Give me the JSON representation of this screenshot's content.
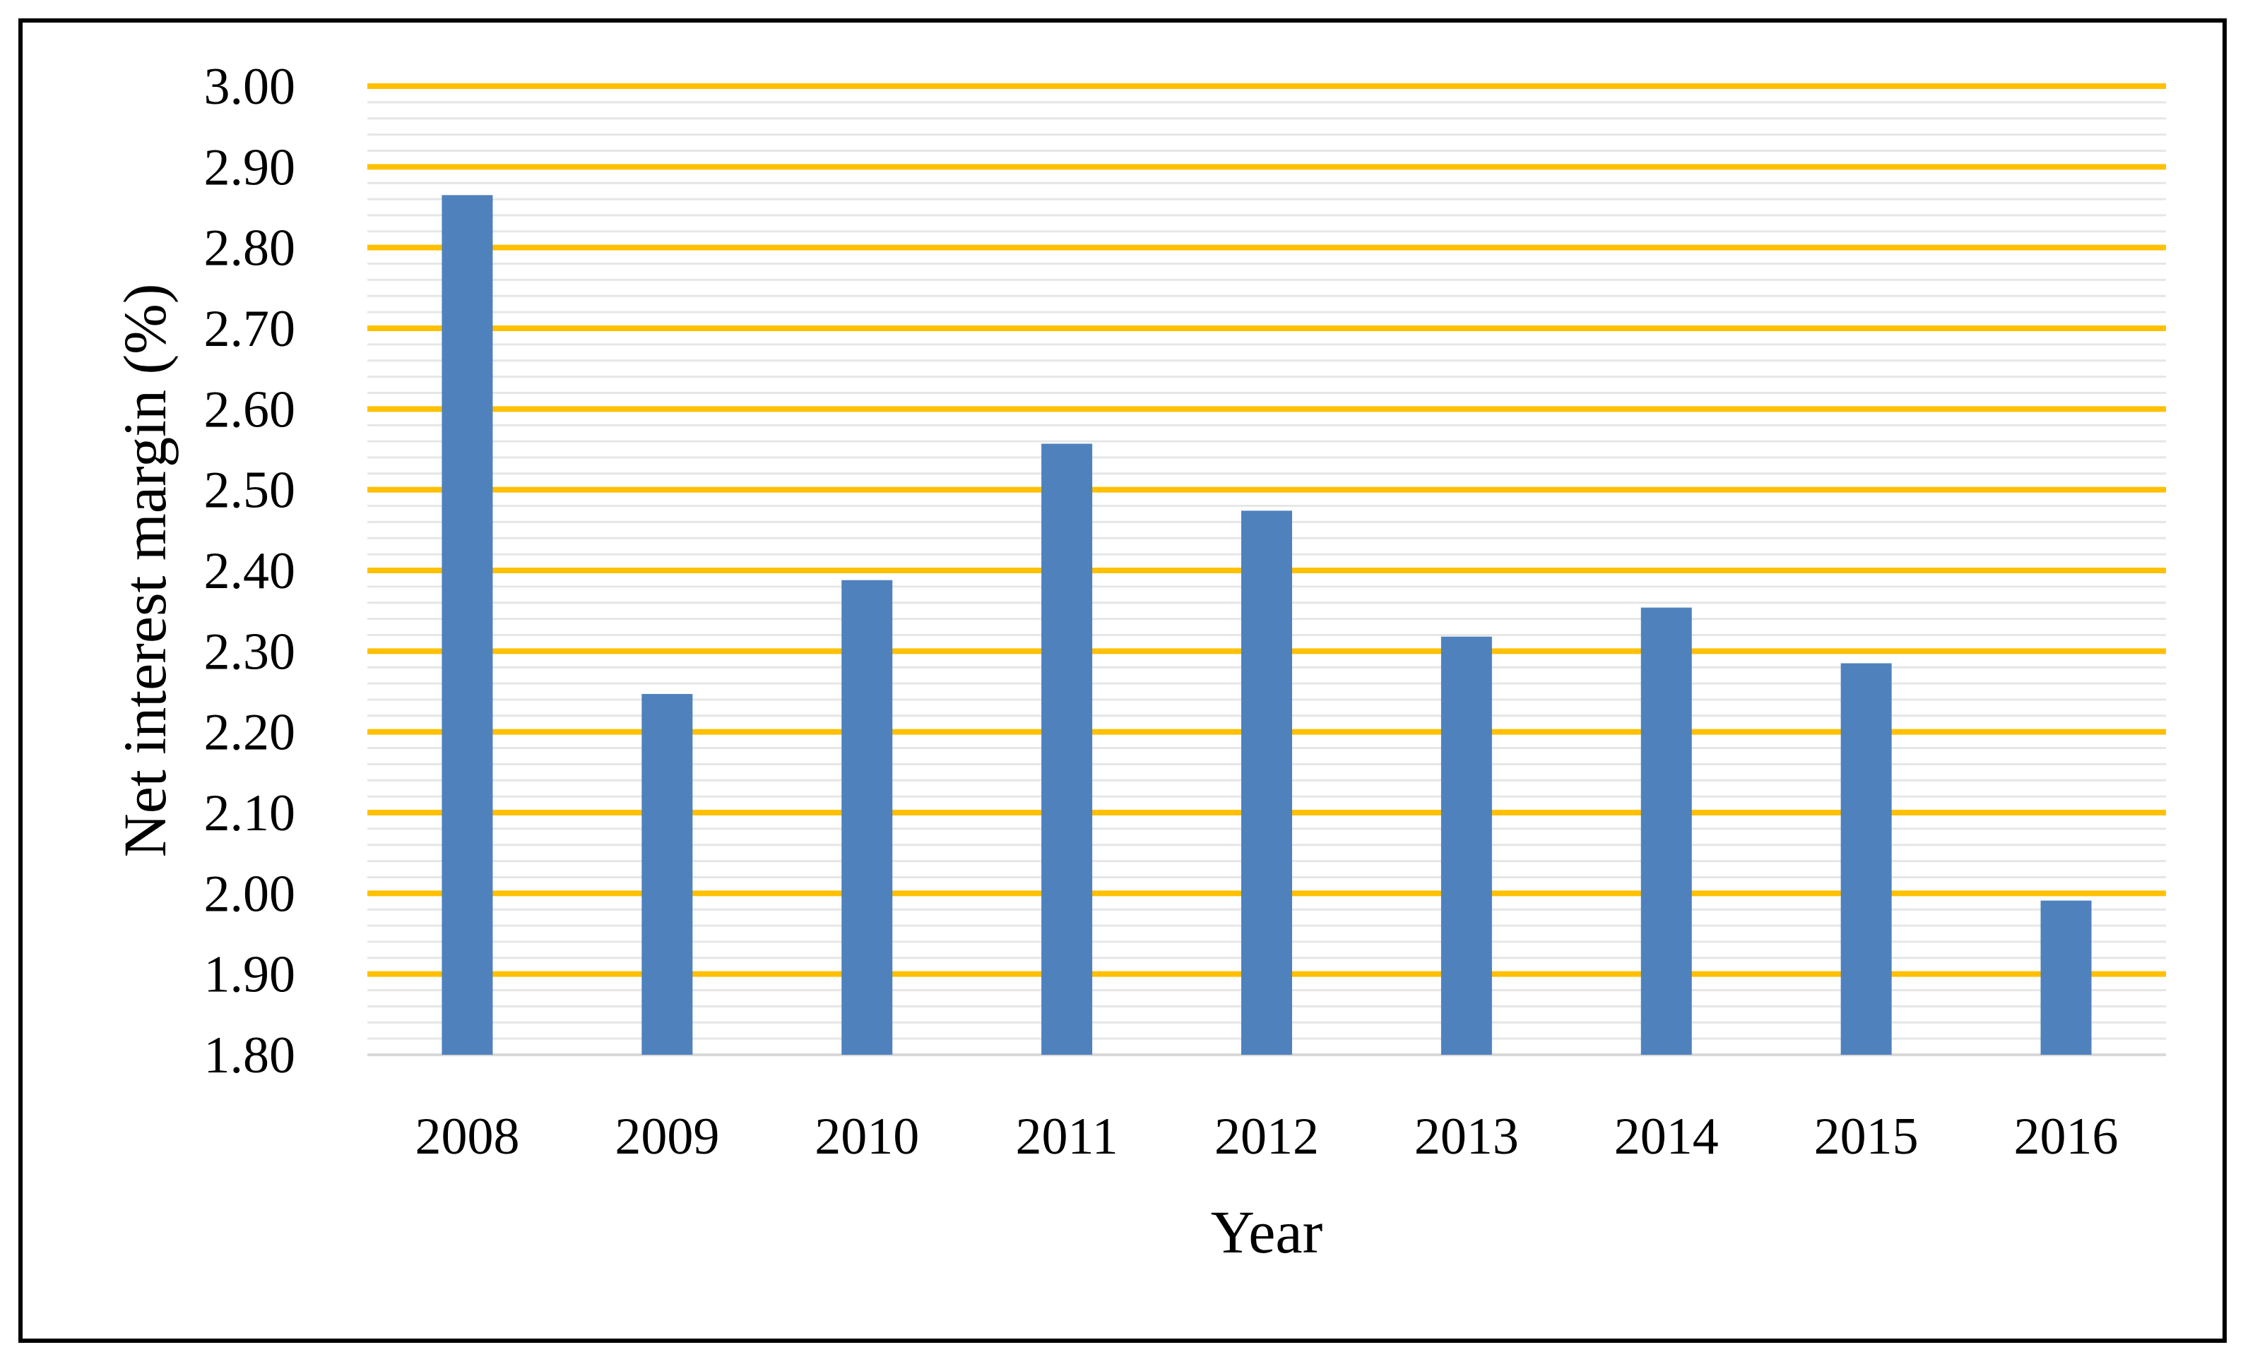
{
  "chart_data": {
    "type": "bar",
    "title": "",
    "xlabel": "Year",
    "ylabel": "Net interest margin (%)",
    "categories": [
      "2008",
      "2009",
      "2010",
      "2011",
      "2012",
      "2013",
      "2014",
      "2015",
      "2016"
    ],
    "values": [
      2.865,
      2.247,
      2.388,
      2.557,
      2.474,
      2.318,
      2.354,
      2.285,
      1.991
    ],
    "ylim": [
      1.8,
      3.0
    ],
    "yticks": [
      "1.80",
      "1.90",
      "2.00",
      "2.10",
      "2.20",
      "2.30",
      "2.40",
      "2.50",
      "2.60",
      "2.70",
      "2.80",
      "2.90",
      "3.00"
    ],
    "ytick_values": [
      1.8,
      1.9,
      2.0,
      2.1,
      2.2,
      2.3,
      2.4,
      2.5,
      2.6,
      2.7,
      2.8,
      2.9,
      3.0
    ],
    "minor_grid_step": 0.02,
    "grid": true,
    "legend": "none",
    "colors": {
      "bar": "#4F81BD",
      "major_grid": "#FFC000",
      "minor_grid": "#E6E6E6",
      "axis": "#D9D9D9"
    }
  }
}
